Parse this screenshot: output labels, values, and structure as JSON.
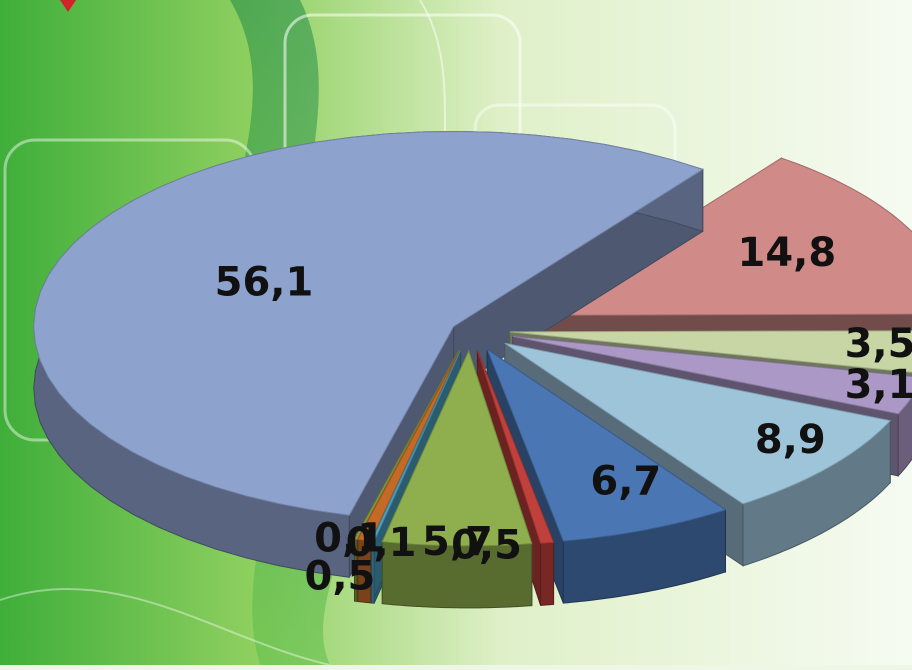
{
  "chart_data": {
    "type": "pie",
    "style": "3d-exploded",
    "decimal_separator": ",",
    "slices": [
      {
        "value": 56.1,
        "label": "56,1",
        "color": "#8ea2ce"
      },
      {
        "value": 14.8,
        "label": "14,8",
        "color": "#d08a88"
      },
      {
        "value": 3.5,
        "label": "3,5",
        "color": "#c8d6a6"
      },
      {
        "value": 3.1,
        "label": "3,1",
        "color": "#ab98c6"
      },
      {
        "value": 8.9,
        "label": "8,9",
        "color": "#9ec4da"
      },
      {
        "value": 6.7,
        "label": "6,7",
        "color": "#4a76b4"
      },
      {
        "value": 0.5,
        "label": "0,5",
        "color": "#c0403c"
      },
      {
        "value": 5.7,
        "label": "5,7",
        "color": "#8fae4e"
      },
      {
        "value": 0.1,
        "label": "0,1",
        "color": "#4fa6c8"
      },
      {
        "value": 0.5,
        "label": "0,5",
        "color": "#c46a26"
      },
      {
        "value": 0.1,
        "label": "0,1",
        "color": "#8a9d3e"
      }
    ]
  }
}
